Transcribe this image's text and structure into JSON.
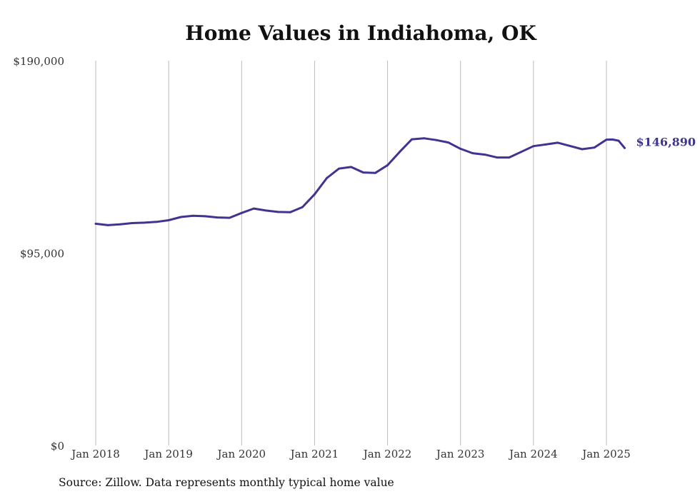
{
  "chart_data": {
    "type": "line",
    "title": "Home Values in Indiahoma, OK",
    "xlabel": "",
    "ylabel": "",
    "ylim": [
      0,
      190000
    ],
    "y_ticks": [
      {
        "value": 0,
        "label": "$0"
      },
      {
        "value": 95000,
        "label": "$95,000"
      },
      {
        "value": 190000,
        "label": "$190,000"
      }
    ],
    "x_ticks": [
      {
        "value": 2018,
        "label": "Jan 2018"
      },
      {
        "value": 2019,
        "label": "Jan 2019"
      },
      {
        "value": 2020,
        "label": "Jan 2020"
      },
      {
        "value": 2021,
        "label": "Jan 2021"
      },
      {
        "value": 2022,
        "label": "Jan 2022"
      },
      {
        "value": 2023,
        "label": "Jan 2023"
      },
      {
        "value": 2024,
        "label": "Jan 2024"
      },
      {
        "value": 2025,
        "label": "Jan 2025"
      }
    ],
    "grid": "vertical",
    "line_color": "#3f3591",
    "end_label": "$146,890",
    "series": [
      {
        "x": [
          "2018-01",
          "2018-03",
          "2018-05",
          "2018-07",
          "2018-09",
          "2018-11",
          "2019-01",
          "2019-03",
          "2019-05",
          "2019-07",
          "2019-09",
          "2019-11",
          "2020-01",
          "2020-03",
          "2020-05",
          "2020-07",
          "2020-09",
          "2020-11",
          "2021-01",
          "2021-03",
          "2021-05",
          "2021-07",
          "2021-09",
          "2021-11",
          "2022-01",
          "2022-03",
          "2022-05",
          "2022-07",
          "2022-09",
          "2022-11",
          "2023-01",
          "2023-03",
          "2023-05",
          "2023-07",
          "2023-09",
          "2023-11",
          "2024-01",
          "2024-03",
          "2024-05",
          "2024-07",
          "2024-09",
          "2024-11",
          "2025-01",
          "2025-02",
          "2025-03",
          "2025-04"
        ],
        "values": [
          109500,
          108800,
          109200,
          109800,
          110000,
          110400,
          111200,
          112800,
          113400,
          113200,
          112600,
          112400,
          114800,
          117000,
          116000,
          115300,
          115200,
          117700,
          124000,
          132000,
          136700,
          137500,
          134800,
          134600,
          138400,
          145000,
          151200,
          151700,
          150800,
          149600,
          146500,
          144300,
          143600,
          142200,
          142200,
          145000,
          147800,
          148600,
          149500,
          147900,
          146300,
          147100,
          151000,
          151100,
          150500,
          146890
        ]
      }
    ],
    "source": "Source: Zillow. Data represents monthly typical home value"
  }
}
